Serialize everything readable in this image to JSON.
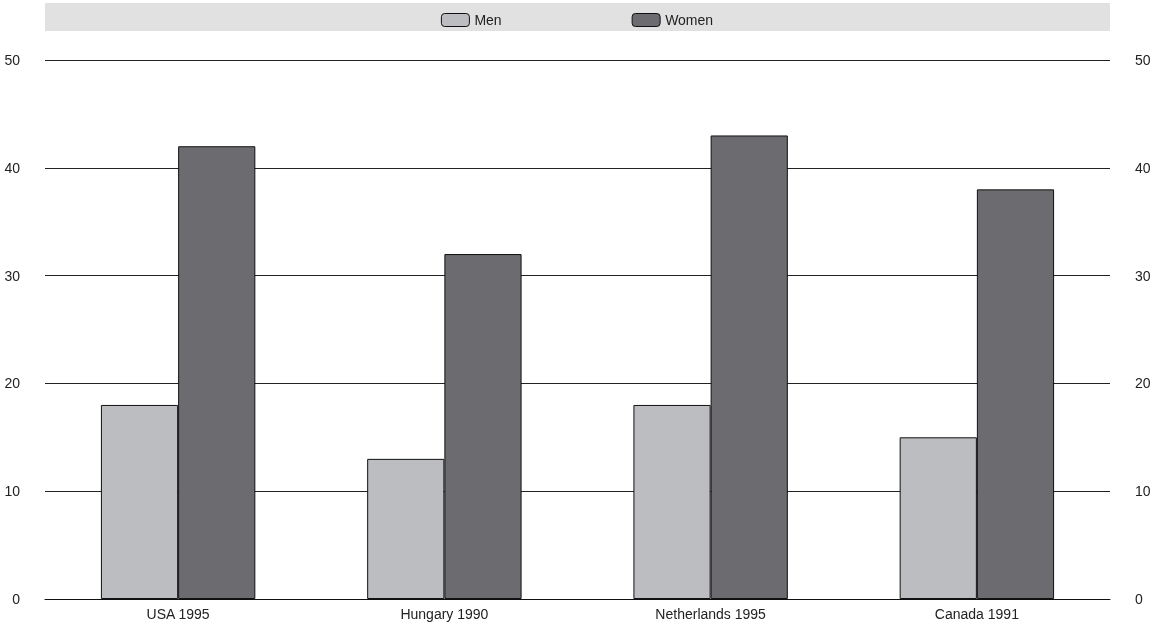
{
  "chart_data": {
    "type": "bar",
    "categories": [
      "USA 1995",
      "Hungary 1990",
      "Netherlands 1995",
      "Canada 1991"
    ],
    "series": [
      {
        "name": "Men",
        "color": "#bcbdc1",
        "values": [
          18,
          13,
          18,
          15
        ]
      },
      {
        "name": "Women",
        "color": "#6b6b70",
        "values": [
          42,
          32,
          43,
          38
        ]
      }
    ],
    "ylim": [
      0,
      50
    ],
    "yticks": [
      0,
      10,
      20,
      30,
      40,
      50
    ],
    "y2lim": [
      0,
      50
    ],
    "y2ticks": [
      0,
      10,
      20,
      30,
      40,
      50
    ],
    "grid": "y",
    "legend": "top"
  }
}
